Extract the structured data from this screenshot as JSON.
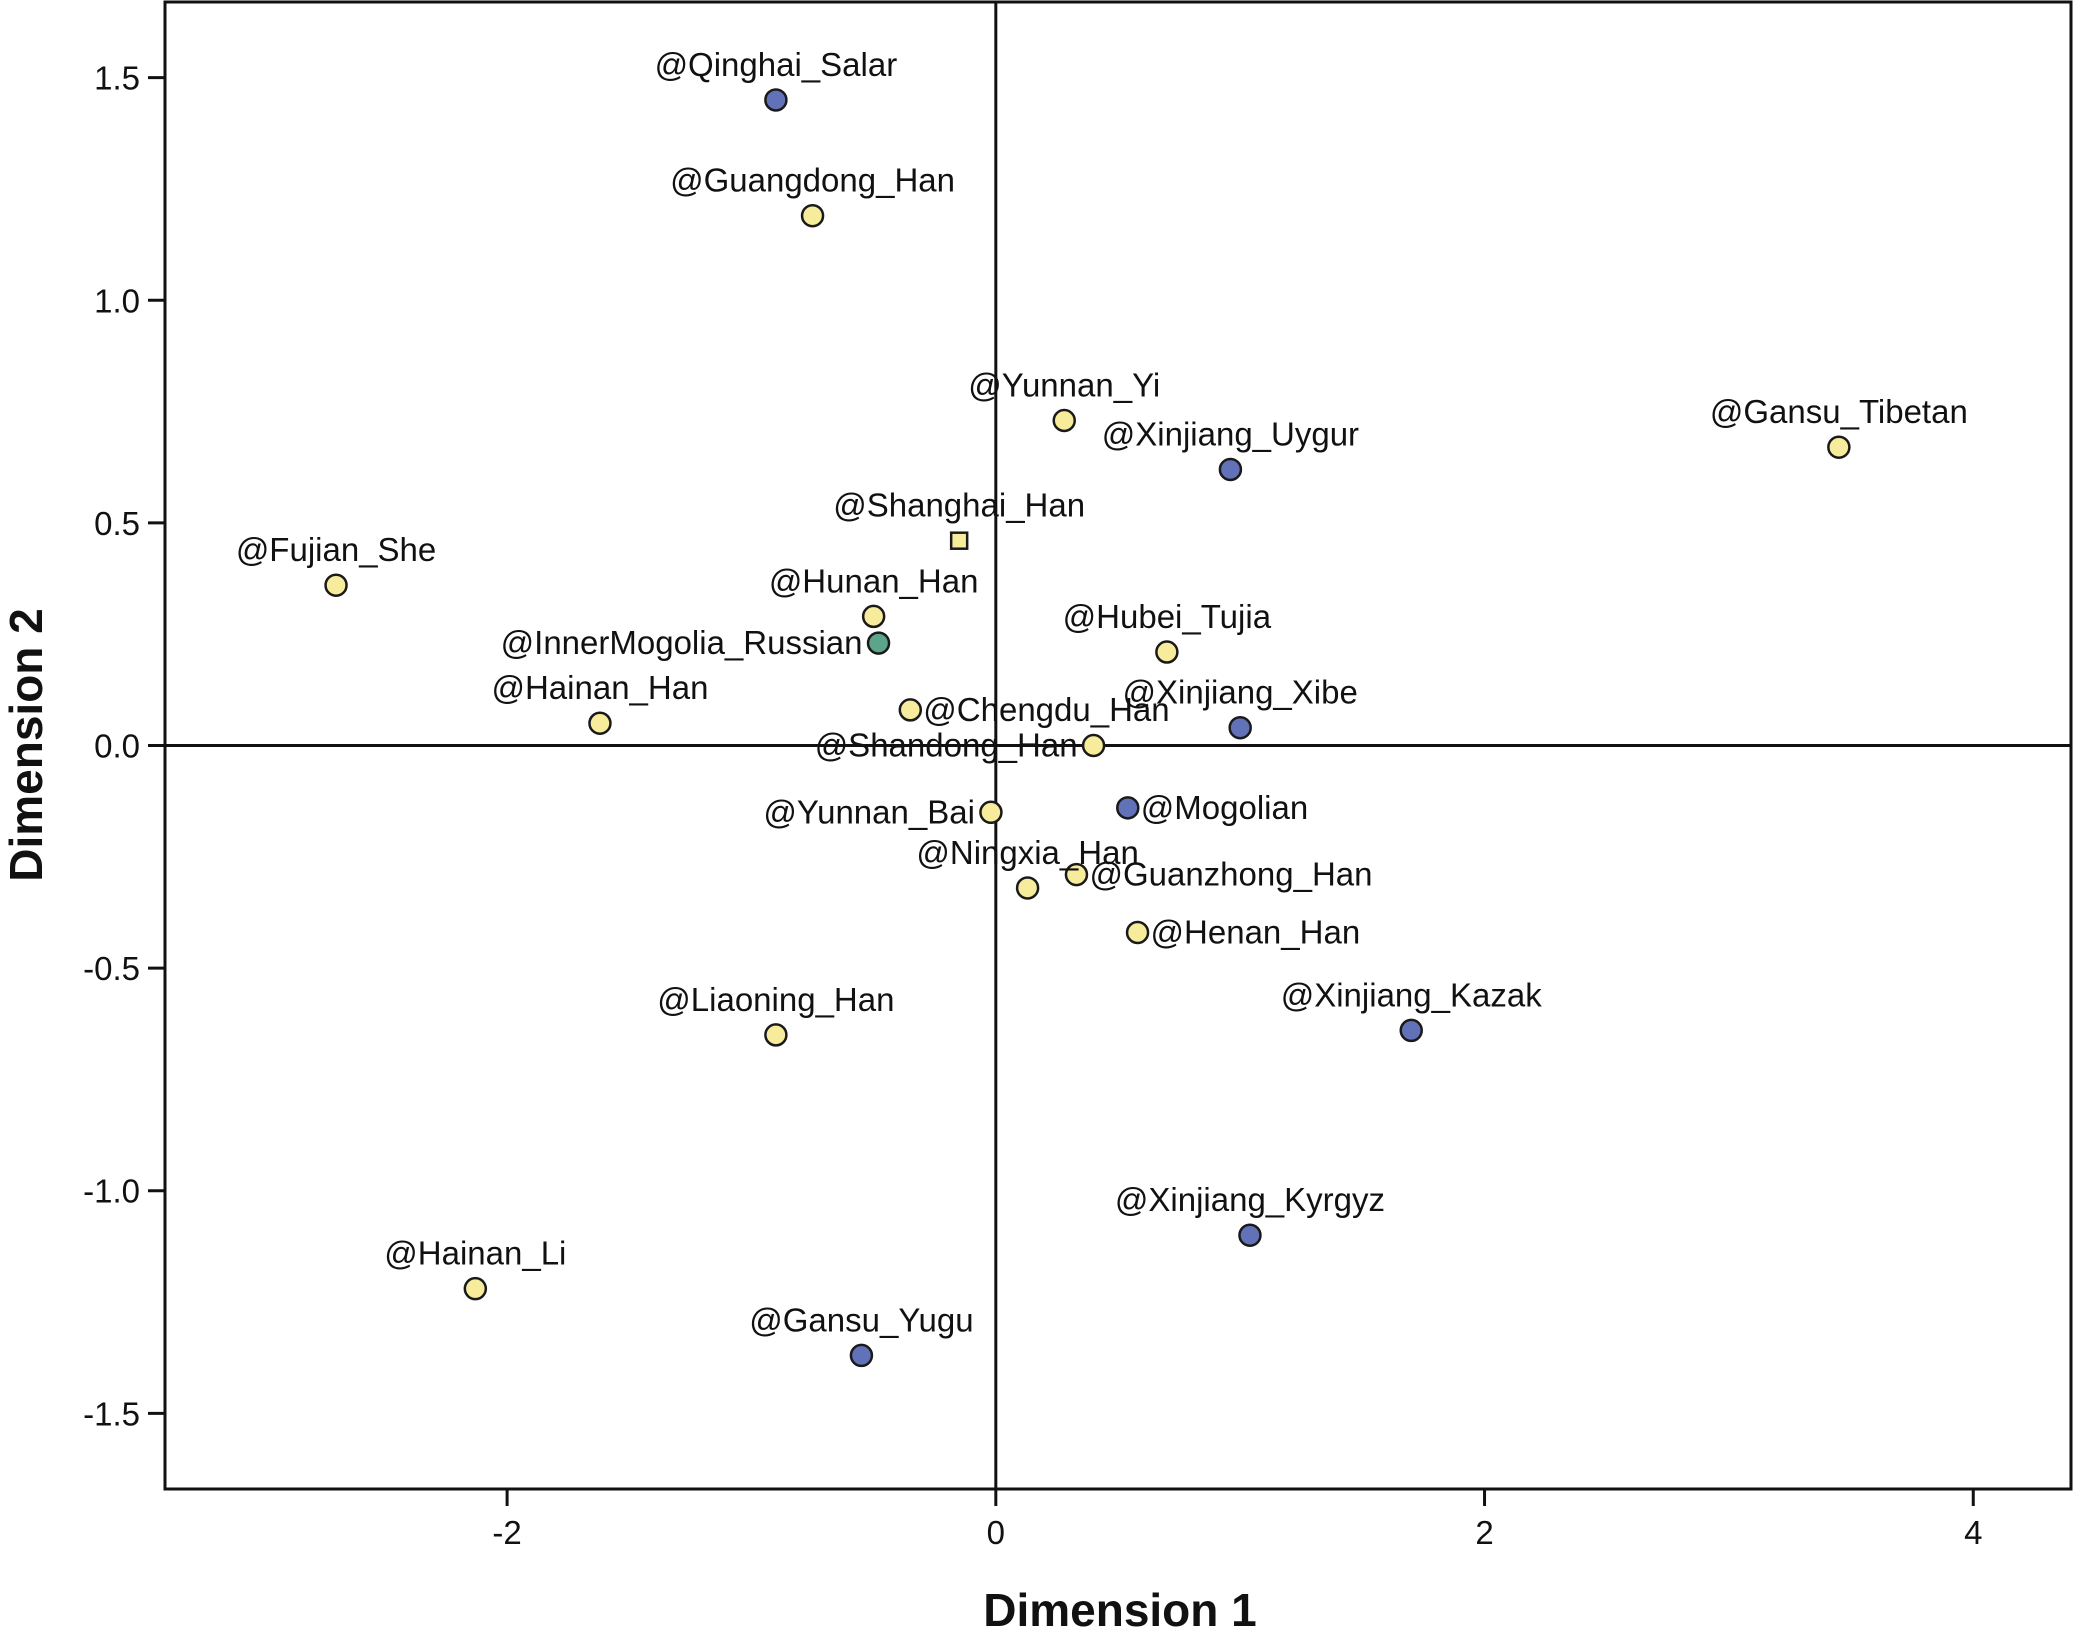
{
  "chart_data": {
    "type": "scatter",
    "title": "",
    "xlabel": "Dimension 1",
    "ylabel": "Dimension 2",
    "xlim": [
      -3.4,
      4.4
    ],
    "ylim": [
      -1.67,
      1.67
    ],
    "xticks": [
      -2,
      0,
      2,
      4
    ],
    "xtick_labels": [
      "-2",
      "0",
      "2",
      "4"
    ],
    "yticks": [
      -1.5,
      -1.0,
      -0.5,
      0.0,
      0.5,
      1.0,
      1.5
    ],
    "ytick_labels": [
      "-1.5",
      "-1.0",
      "-0.5",
      "0.0",
      "0.5",
      "1.0",
      "1.5"
    ],
    "grid": false,
    "reference_lines": {
      "x": 0,
      "y": 0
    },
    "colors": {
      "yellow": "#f7ec9c",
      "blue": "#6272b8",
      "green": "#5da58a",
      "outline": "#1a1a1a"
    },
    "points": [
      {
        "label": "@Qinghai_Salar",
        "x": -0.9,
        "y": 1.45,
        "color": "blue",
        "marker": "circle",
        "anchor": "above"
      },
      {
        "label": "@Guangdong_Han",
        "x": -0.75,
        "y": 1.19,
        "color": "yellow",
        "marker": "circle",
        "anchor": "above"
      },
      {
        "label": "@Yunnan_Yi",
        "x": 0.28,
        "y": 0.73,
        "color": "yellow",
        "marker": "circle",
        "anchor": "above"
      },
      {
        "label": "@Xinjiang_Uygur",
        "x": 0.96,
        "y": 0.62,
        "color": "blue",
        "marker": "circle",
        "anchor": "above"
      },
      {
        "label": "@Gansu_Tibetan",
        "x": 3.45,
        "y": 0.67,
        "color": "yellow",
        "marker": "circle",
        "anchor": "above"
      },
      {
        "label": "@Shanghai_Han",
        "x": -0.15,
        "y": 0.46,
        "color": "yellow",
        "marker": "square",
        "anchor": "above"
      },
      {
        "label": "@Fujian_She",
        "x": -2.7,
        "y": 0.36,
        "color": "yellow",
        "marker": "circle",
        "anchor": "above"
      },
      {
        "label": "@Hunan_Han",
        "x": -0.5,
        "y": 0.29,
        "color": "yellow",
        "marker": "circle",
        "anchor": "above"
      },
      {
        "label": "@InnerMogolia_Russian",
        "x": -0.48,
        "y": 0.23,
        "color": "green",
        "marker": "circle",
        "anchor": "left"
      },
      {
        "label": "@Hubei_Tujia",
        "x": 0.7,
        "y": 0.21,
        "color": "yellow",
        "marker": "circle",
        "anchor": "above"
      },
      {
        "label": "@Hainan_Han",
        "x": -1.62,
        "y": 0.05,
        "color": "yellow",
        "marker": "circle",
        "anchor": "above"
      },
      {
        "label": "@Chengdu_Han",
        "x": -0.35,
        "y": 0.08,
        "color": "yellow",
        "marker": "circle",
        "anchor": "right"
      },
      {
        "label": "@Xinjiang_Xibe",
        "x": 1.0,
        "y": 0.04,
        "color": "blue",
        "marker": "circle",
        "anchor": "above"
      },
      {
        "label": "@Shandong_Han",
        "x": 0.4,
        "y": 0.0,
        "color": "yellow",
        "marker": "circle",
        "anchor": "left"
      },
      {
        "label": "@Yunnan_Bai",
        "x": -0.02,
        "y": -0.15,
        "color": "yellow",
        "marker": "circle",
        "anchor": "left"
      },
      {
        "label": "@Mogolian",
        "x": 0.54,
        "y": -0.14,
        "color": "blue",
        "marker": "circle",
        "anchor": "right"
      },
      {
        "label": "@Ningxia_Han",
        "x": 0.13,
        "y": -0.32,
        "color": "yellow",
        "marker": "circle",
        "anchor": "above"
      },
      {
        "label": "@Guanzhong_Han",
        "x": 0.33,
        "y": -0.29,
        "color": "yellow",
        "marker": "circle",
        "anchor": "right"
      },
      {
        "label": "@Henan_Han",
        "x": 0.58,
        "y": -0.42,
        "color": "yellow",
        "marker": "circle",
        "anchor": "right"
      },
      {
        "label": "@Xinjiang_Kazak",
        "x": 1.7,
        "y": -0.64,
        "color": "blue",
        "marker": "circle",
        "anchor": "above"
      },
      {
        "label": "@Liaoning_Han",
        "x": -0.9,
        "y": -0.65,
        "color": "yellow",
        "marker": "circle",
        "anchor": "above"
      },
      {
        "label": "@Xinjiang_Kyrgyz",
        "x": 1.04,
        "y": -1.1,
        "color": "blue",
        "marker": "circle",
        "anchor": "above"
      },
      {
        "label": "@Hainan_Li",
        "x": -2.13,
        "y": -1.22,
        "color": "yellow",
        "marker": "circle",
        "anchor": "above"
      },
      {
        "label": "@Gansu_Yugu",
        "x": -0.55,
        "y": -1.37,
        "color": "blue",
        "marker": "circle",
        "anchor": "above"
      }
    ]
  }
}
